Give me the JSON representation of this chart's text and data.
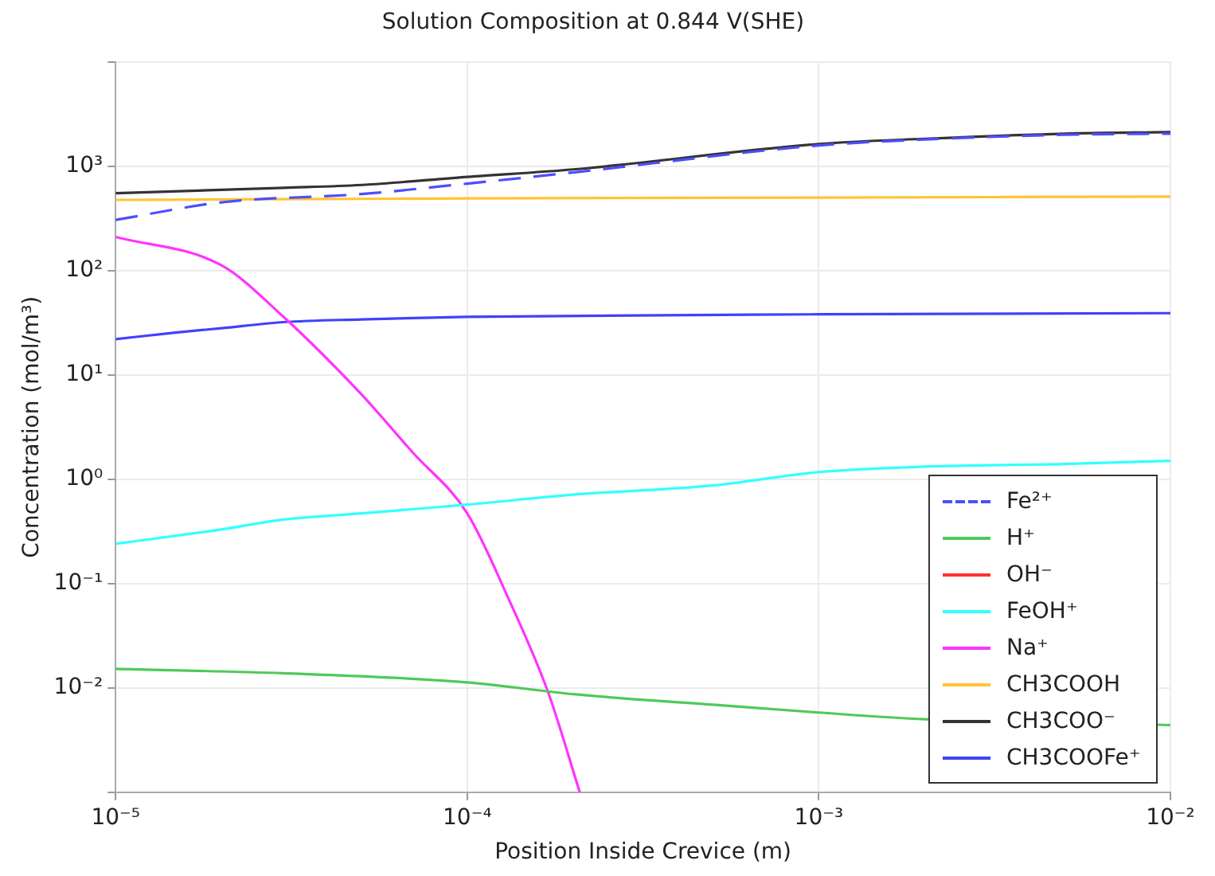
{
  "chart_data": {
    "type": "line",
    "title": "Solution Composition at 0.844 V(SHE)",
    "xlabel": "Position Inside Crevice (m)",
    "ylabel": "Concentration (mol/m³)",
    "log": "xy",
    "grid": true,
    "legend": "bottom right",
    "marker": "none",
    "xlim": [
      1e-05,
      0.01
    ],
    "xticks": [
      {
        "value": 1e-05,
        "label": "10⁻⁵"
      },
      {
        "value": 0.0001,
        "label": "10⁻⁴"
      },
      {
        "value": 0.001,
        "label": "10⁻³"
      },
      {
        "value": 0.01,
        "label": "10⁻²"
      }
    ],
    "ylim": [
      0.001,
      10000
    ],
    "yticks": [
      {
        "value": 0.001,
        "label": null
      },
      {
        "value": 0.01,
        "label": "10⁻²"
      },
      {
        "value": 0.1,
        "label": "10⁻¹"
      },
      {
        "value": 1,
        "label": "10⁰"
      },
      {
        "value": 10,
        "label": "10¹"
      },
      {
        "value": 100,
        "label": "10²"
      },
      {
        "value": 1000,
        "label": "10³"
      },
      {
        "value": 10000,
        "label": null
      }
    ],
    "series": [
      {
        "name": "Fe²⁺",
        "color": "#4d4dff",
        "line_style": "dashed",
        "x": [
          1e-05,
          2e-05,
          5e-05,
          0.0001,
          0.0002,
          0.001,
          0.002,
          0.005,
          0.01
        ],
        "values": [
          305,
          450,
          540,
          680,
          870,
          1580,
          1800,
          2000,
          2050
        ]
      },
      {
        "name": "H⁺",
        "color": "#4fc95a",
        "x": [
          1e-05,
          3e-05,
          0.0001,
          0.0002,
          0.0005,
          0.001,
          0.002,
          0.01
        ],
        "values": [
          0.0152,
          0.0138,
          0.0113,
          0.0087,
          0.0069,
          0.0058,
          0.005,
          0.0044
        ]
      },
      {
        "name": "OH⁻",
        "color": "#ff3030"
      },
      {
        "name": "FeOH⁺",
        "color": "#33ffff",
        "x": [
          1e-05,
          2e-05,
          3e-05,
          5e-05,
          0.0001,
          0.0002,
          0.0005,
          0.001,
          0.002,
          0.005,
          0.01
        ],
        "values": [
          0.24,
          0.33,
          0.41,
          0.47,
          0.57,
          0.71,
          0.87,
          1.17,
          1.32,
          1.4,
          1.5
        ]
      },
      {
        "name": "Na⁺",
        "color": "#ff33ff",
        "x": [
          1e-05,
          2e-05,
          3e-05,
          5e-05,
          7e-05,
          0.0001,
          0.00013,
          0.00017,
          0.000209
        ],
        "values": [
          210,
          112,
          36,
          6.5,
          1.8,
          0.47,
          0.076,
          0.009,
          0.001
        ]
      },
      {
        "name": "CH3COOH",
        "color": "#ffc433",
        "x": [
          1e-05,
          0.0001,
          0.001,
          0.01
        ],
        "values": [
          475,
          490,
          500,
          510
        ]
      },
      {
        "name": "CH3COO⁻",
        "color": "#333333",
        "x": [
          1e-05,
          3e-05,
          5e-05,
          0.0001,
          0.0002,
          0.001,
          0.002,
          0.005,
          0.01
        ],
        "values": [
          550,
          620,
          660,
          790,
          930,
          1630,
          1830,
          2050,
          2120
        ]
      },
      {
        "name": "CH3COOFe⁺",
        "color": "#4040ff",
        "x": [
          1e-05,
          1.5e-05,
          2e-05,
          3e-05,
          5e-05,
          0.0001,
          0.001,
          0.01
        ],
        "values": [
          22,
          25.5,
          28,
          32,
          34,
          36,
          38,
          39
        ]
      }
    ]
  }
}
